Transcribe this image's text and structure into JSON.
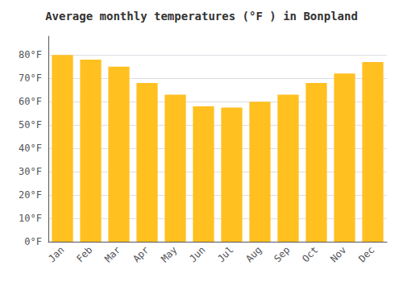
{
  "chart_data": {
    "type": "bar",
    "title": "Average monthly temperatures (°F ) in Bonpland",
    "categories": [
      "Jan",
      "Feb",
      "Mar",
      "Apr",
      "May",
      "Jun",
      "Jul",
      "Aug",
      "Sep",
      "Oct",
      "Nov",
      "Dec"
    ],
    "values": [
      80,
      78,
      75,
      68,
      63,
      58,
      57.5,
      60,
      63,
      68,
      72,
      77
    ],
    "color": "#FFC020",
    "ylim": [
      0,
      88
    ],
    "yticks": [
      {
        "value": 0,
        "label": "0°F"
      },
      {
        "value": 10,
        "label": "10°F"
      },
      {
        "value": 20,
        "label": "20°F"
      },
      {
        "value": 30,
        "label": "30°F"
      },
      {
        "value": 40,
        "label": "40°F"
      },
      {
        "value": 50,
        "label": "50°F"
      },
      {
        "value": 60,
        "label": "60°F"
      },
      {
        "value": 70,
        "label": "70°F"
      },
      {
        "value": 80,
        "label": "80°F"
      }
    ],
    "grid": true
  }
}
